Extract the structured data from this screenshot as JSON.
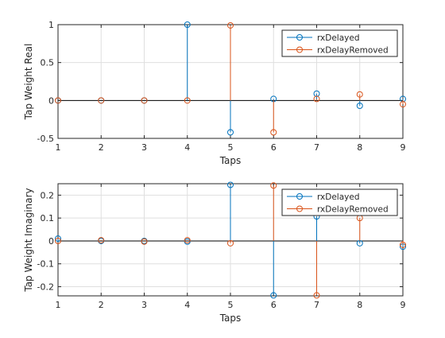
{
  "chart_data": [
    {
      "type": "stem",
      "xlabel": "Taps",
      "ylabel": "Tap Weight Real",
      "xlim": [
        1,
        9
      ],
      "ylim": [
        -0.5,
        1
      ],
      "xticks": [
        "1",
        "2",
        "3",
        "4",
        "5",
        "6",
        "7",
        "8",
        "9"
      ],
      "yticks": [
        "-0.5",
        "0",
        "0.5",
        "1"
      ],
      "grid": true,
      "legend_position": "top-right",
      "x": [
        1,
        2,
        3,
        4,
        5,
        6,
        7,
        8,
        9
      ],
      "series": [
        {
          "name": "rxDelayed",
          "color": "#0072BD",
          "values": [
            0,
            0,
            0,
            1,
            -0.42,
            0.02,
            0.09,
            -0.07,
            0.02
          ]
        },
        {
          "name": "rxDelayRemoved",
          "color": "#D95319",
          "values": [
            0,
            0,
            0,
            0,
            0.99,
            -0.42,
            0.02,
            0.08,
            -0.05
          ]
        }
      ]
    },
    {
      "type": "stem",
      "xlabel": "Taps",
      "ylabel": "Tap Weight Imaginary",
      "xlim": [
        1,
        9
      ],
      "ylim": [
        -0.24,
        0.25
      ],
      "xticks": [
        "1",
        "2",
        "3",
        "4",
        "5",
        "6",
        "7",
        "8",
        "9"
      ],
      "yticks": [
        "-0.2",
        "-0.1",
        "0",
        "0.1",
        "0.2"
      ],
      "grid": true,
      "legend_position": "top-right",
      "x": [
        1,
        2,
        3,
        4,
        5,
        6,
        7,
        8,
        9
      ],
      "series": [
        {
          "name": "rxDelayed",
          "color": "#0072BD",
          "values": [
            0.01,
            0,
            0,
            -0.003,
            0.245,
            -0.238,
            0.107,
            -0.01,
            -0.025
          ]
        },
        {
          "name": "rxDelayRemoved",
          "color": "#D95319",
          "values": [
            0,
            0.003,
            -0.003,
            0.003,
            -0.01,
            0.242,
            -0.238,
            0.1,
            -0.017
          ]
        }
      ]
    }
  ]
}
